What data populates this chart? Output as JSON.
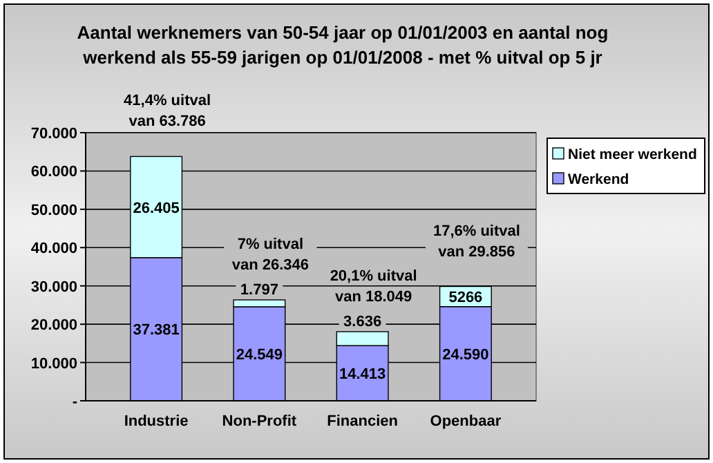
{
  "chart_data": {
    "type": "bar",
    "stacked": true,
    "title": "Aantal werknemers van 50-54 jaar op 01/01/2003 en aantal nog werkend als 55-59 jarigen op 01/01/2008 - met % uitval op 5 jr",
    "categories": [
      "Industrie",
      "Non-Profit",
      "Financien",
      "Openbaar"
    ],
    "series": [
      {
        "name": "Werkend",
        "color": "#9999ff",
        "values": [
          37381,
          24549,
          14413,
          24590
        ],
        "value_labels": [
          "37.381",
          "24.549",
          "14.413",
          "24.590"
        ]
      },
      {
        "name": "Niet meer werkend",
        "color": "#ccffff",
        "values": [
          26405,
          1797,
          3636,
          5266
        ],
        "value_labels": [
          "26.405",
          "1.797",
          "3.636",
          "5266"
        ]
      }
    ],
    "ylim": [
      0,
      70000
    ],
    "yticks": [
      {
        "value": 0,
        "label": "-"
      },
      {
        "value": 10000,
        "label": "10.000"
      },
      {
        "value": 20000,
        "label": "20.000"
      },
      {
        "value": 30000,
        "label": "30.000"
      },
      {
        "value": 40000,
        "label": "40.000"
      },
      {
        "value": 50000,
        "label": "50.000"
      },
      {
        "value": 60000,
        "label": "60.000"
      },
      {
        "value": 70000,
        "label": "70.000"
      }
    ],
    "grid": "y",
    "legend": "right",
    "annotations": [
      {
        "text": "41,4% uitval\nvan 63.786",
        "x": "Industrie",
        "y": 63786
      },
      {
        "text": "7% uitval\nvan 26.346",
        "x": "Non-Profit",
        "y": 26346
      },
      {
        "text": "20,1% uitval\nvan 18.049",
        "x": "Financien",
        "y": 18049
      },
      {
        "text": "17,6% uitval\nvan 29.856",
        "x": "Openbaar",
        "y": 29856
      }
    ]
  }
}
